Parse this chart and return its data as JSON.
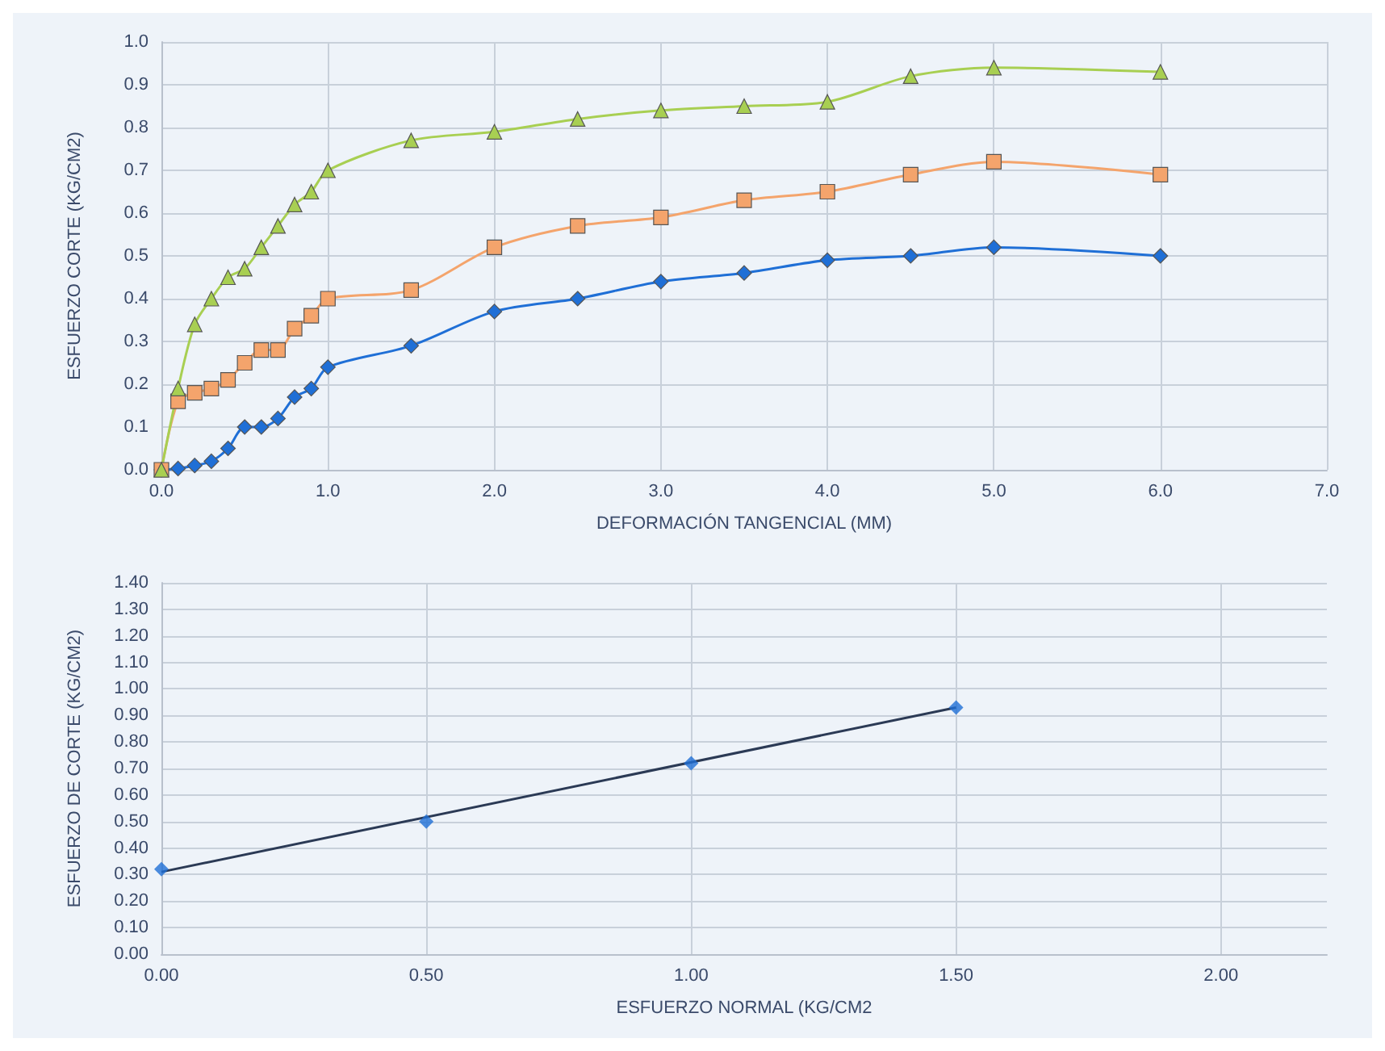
{
  "chart_data": [
    {
      "type": "line",
      "xlabel": "DEFORMACIÓN TANGENCIAL (MM)",
      "ylabel": "ESFUERZO CORTE (KG/CM2)",
      "x": [
        0,
        0.1,
        0.2,
        0.3,
        0.4,
        0.5,
        0.6,
        0.7,
        0.8,
        0.9,
        1.0,
        1.5,
        2.0,
        2.5,
        3.0,
        3.5,
        4.0,
        4.5,
        5.0,
        6.0
      ],
      "series": [
        {
          "color": "#1f6fd6",
          "marker": "diamond",
          "values": [
            0,
            0.003,
            0.01,
            0.02,
            0.05,
            0.1,
            0.1,
            0.12,
            0.17,
            0.19,
            0.24,
            0.29,
            0.37,
            0.4,
            0.44,
            0.46,
            0.49,
            0.5,
            0.52,
            0.5
          ]
        },
        {
          "color": "#f4a46c",
          "marker": "square",
          "values": [
            0,
            0.16,
            0.18,
            0.19,
            0.21,
            0.25,
            0.28,
            0.28,
            0.33,
            0.36,
            0.4,
            0.42,
            0.52,
            0.57,
            0.59,
            0.63,
            0.65,
            0.69,
            0.72,
            0.69
          ]
        },
        {
          "color": "#a8cf52",
          "marker": "triangle",
          "values": [
            0,
            0.19,
            0.34,
            0.4,
            0.45,
            0.47,
            0.52,
            0.57,
            0.62,
            0.65,
            0.7,
            0.77,
            0.79,
            0.82,
            0.84,
            0.85,
            0.86,
            0.92,
            0.94,
            0.93
          ]
        }
      ],
      "xlim": [
        0,
        7
      ],
      "xticks": [
        {
          "value": 0,
          "label": "0.0"
        },
        {
          "value": 1,
          "label": "1.0"
        },
        {
          "value": 2,
          "label": "2.0"
        },
        {
          "value": 3,
          "label": "3.0"
        },
        {
          "value": 4,
          "label": "4.0"
        },
        {
          "value": 5,
          "label": "5.0"
        },
        {
          "value": 6,
          "label": "6.0"
        },
        {
          "value": 7,
          "label": "7.0"
        }
      ],
      "ylim": [
        0,
        1
      ],
      "yticks": [
        {
          "value": 0,
          "label": "0.0"
        },
        {
          "value": 0.1,
          "label": "0.1"
        },
        {
          "value": 0.2,
          "label": "0.2"
        },
        {
          "value": 0.3,
          "label": "0.3"
        },
        {
          "value": 0.4,
          "label": "0.4"
        },
        {
          "value": 0.5,
          "label": "0.5"
        },
        {
          "value": 0.6,
          "label": "0.6"
        },
        {
          "value": 0.7,
          "label": "0.7"
        },
        {
          "value": 0.8,
          "label": "0.8"
        },
        {
          "value": 0.9,
          "label": "0.9"
        },
        {
          "value": 1,
          "label": "1.0"
        }
      ],
      "grid": true
    },
    {
      "type": "scatter",
      "xlabel": "ESFUERZO NORMAL (KG/CM2",
      "ylabel": "ESFUERZO DE CORTE (KG/CM2)",
      "series": [
        {
          "type": "scatter",
          "color": "#1f6fd6",
          "marker": "diamond",
          "x": [
            0,
            0.5,
            1.0,
            1.5
          ],
          "values": [
            0.32,
            0.5,
            0.72,
            0.93
          ]
        },
        {
          "type": "line",
          "color": "#2b3a55",
          "marker": "none",
          "x": [
            0,
            1.5
          ],
          "values": [
            0.31,
            0.93
          ]
        }
      ],
      "xlim": [
        0,
        2.2
      ],
      "xticks": [
        {
          "value": 0,
          "label": "0.00"
        },
        {
          "value": 0.5,
          "label": "0.50"
        },
        {
          "value": 1,
          "label": "1.00"
        },
        {
          "value": 1.5,
          "label": "1.50"
        },
        {
          "value": 2,
          "label": "2.00"
        }
      ],
      "ylim": [
        0,
        1.4
      ],
      "yticks": [
        {
          "value": 0,
          "label": "0.00"
        },
        {
          "value": 0.1,
          "label": "0.10"
        },
        {
          "value": 0.2,
          "label": "0.20"
        },
        {
          "value": 0.3,
          "label": "0.30"
        },
        {
          "value": 0.4,
          "label": "0.40"
        },
        {
          "value": 0.5,
          "label": "0.50"
        },
        {
          "value": 0.6,
          "label": "0.60"
        },
        {
          "value": 0.7,
          "label": "0.70"
        },
        {
          "value": 0.8,
          "label": "0.80"
        },
        {
          "value": 0.9,
          "label": "0.90"
        },
        {
          "value": 1.0,
          "label": "1.00"
        },
        {
          "value": 1.1,
          "label": "1.10"
        },
        {
          "value": 1.2,
          "label": "1.20"
        },
        {
          "value": 1.3,
          "label": "1.30"
        },
        {
          "value": 1.4,
          "label": "1.40"
        }
      ],
      "grid": true
    }
  ]
}
